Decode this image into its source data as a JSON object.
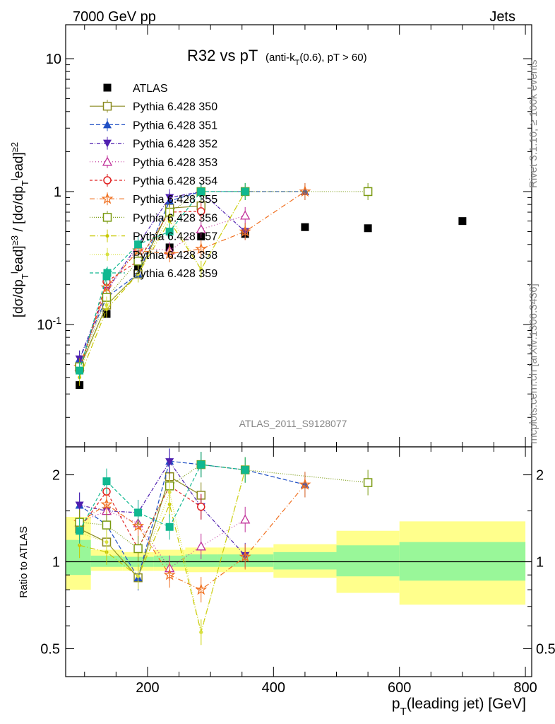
{
  "header": {
    "left": "7000 GeV pp",
    "right": "Jets"
  },
  "title": {
    "main": "R32 vs pT",
    "detail": "(anti-k_T(0.6), pT > 60)"
  },
  "side_labels": {
    "rivet": "Rivet 3.1.10, ≥ 100k events",
    "source": "mcplots.cern.ch [arXiv:1306.3436]"
  },
  "watermark": "ATLAS_2011_S9128077",
  "chart_data": [
    {
      "panel": "main",
      "type": "scatter",
      "ylabel": "[dσ/dp_T^lead]^{≥3} / [dσ/dp_T^lead]^{≥2}",
      "yscale": "log",
      "ylim": [
        0.012,
        18
      ],
      "xlim": [
        70,
        810
      ],
      "ytick_labels": [
        "10^{-1}",
        "1",
        "10"
      ],
      "legend_position": "top-left",
      "series": [
        {
          "name": "ATLAS",
          "color": "#000000",
          "marker": "square-filled",
          "x": [
            92,
            135,
            185,
            235,
            285,
            355,
            450,
            550,
            700
          ],
          "y": [
            0.035,
            0.12,
            0.27,
            0.38,
            0.46,
            0.48,
            0.54,
            0.53,
            0.6
          ]
        },
        {
          "name": "Pythia 6.428 350",
          "color": "#8a8a20",
          "dash": "solid",
          "marker": "square-open",
          "x": [
            92,
            135,
            185,
            235,
            285
          ],
          "y": [
            0.047,
            0.14,
            0.24,
            0.75,
            0.78
          ]
        },
        {
          "name": "Pythia 6.428 351",
          "color": "#1f4fc4",
          "dash": "6,3",
          "marker": "triangle-up-filled",
          "x": [
            92,
            135,
            185,
            235,
            285,
            355,
            450
          ],
          "y": [
            0.055,
            0.16,
            0.24,
            0.85,
            1.0,
            1.0,
            1.0
          ]
        },
        {
          "name": "Pythia 6.428 352",
          "color": "#5020b0",
          "dash": "5,2,1,2",
          "marker": "triangle-down-filled",
          "x": [
            92,
            135,
            185,
            235,
            285,
            355
          ],
          "y": [
            0.055,
            0.18,
            0.4,
            0.9,
            1.0,
            0.5
          ]
        },
        {
          "name": "Pythia 6.428 353",
          "color": "#c0309a",
          "dash": "1,3",
          "marker": "triangle-up-open",
          "x": [
            92,
            135,
            185,
            235,
            285,
            355
          ],
          "y": [
            0.048,
            0.18,
            0.38,
            0.36,
            0.52,
            0.66
          ]
        },
        {
          "name": "Pythia 6.428 354",
          "color": "#e02020",
          "dash": "4,3",
          "marker": "circle-open",
          "x": [
            92,
            135,
            185,
            235,
            285
          ],
          "y": [
            0.045,
            0.21,
            0.3,
            0.7,
            0.71
          ]
        },
        {
          "name": "Pythia 6.428 355",
          "color": "#f07020",
          "dash": "7,3,1,3",
          "marker": "star",
          "x": [
            92,
            135,
            185,
            235,
            285,
            355,
            450
          ],
          "y": [
            0.048,
            0.19,
            0.36,
            0.34,
            0.37,
            0.5,
            1.0
          ]
        },
        {
          "name": "Pythia 6.428 356",
          "color": "#7a9a10",
          "dash": "1,2",
          "marker": "square-open",
          "x": [
            92,
            135,
            185,
            235,
            285,
            355,
            550
          ],
          "y": [
            0.048,
            0.16,
            0.3,
            0.7,
            1.0,
            1.0,
            1.0
          ]
        },
        {
          "name": "Pythia 6.428 357",
          "color": "#c8c800",
          "dash": "8,3,1,3",
          "marker": "dot",
          "x": [
            92,
            135,
            185,
            235,
            285,
            355
          ],
          "y": [
            0.04,
            0.13,
            0.24,
            0.6,
            0.26,
            1.0
          ]
        },
        {
          "name": "Pythia 6.428 358",
          "color": "#d8e040",
          "dash": "1,2",
          "marker": "dot",
          "x": [
            92,
            135,
            185,
            235,
            285,
            355
          ],
          "y": [
            0.044,
            0.14,
            0.24,
            0.66,
            0.26,
            1.0
          ]
        },
        {
          "name": "Pythia 6.428 359",
          "color": "#10b890",
          "dash": "5,3",
          "marker": "square-filled",
          "x": [
            92,
            135,
            185,
            235,
            285,
            355
          ],
          "y": [
            0.045,
            0.23,
            0.4,
            0.5,
            1.0,
            1.0
          ]
        }
      ]
    },
    {
      "panel": "ratio",
      "type": "scatter",
      "ylabel": "Ratio to ATLAS",
      "yscale": "log",
      "ylim": [
        0.4,
        2.5
      ],
      "xlim": [
        70,
        810
      ],
      "xlabel": "p_T(leading jet) [GeV]",
      "xtick_labels": [
        "200",
        "400",
        "600",
        "800"
      ],
      "ytick_labels": [
        "0.5",
        "1",
        "2"
      ],
      "bands": [
        {
          "x_range": [
            70,
            110
          ],
          "yellow": [
            0.8,
            1.43
          ],
          "green": [
            0.9,
            1.19
          ]
        },
        {
          "x_range": [
            110,
            160
          ],
          "yellow": [
            0.93,
            1.1
          ],
          "green": [
            0.96,
            1.05
          ]
        },
        {
          "x_range": [
            160,
            210
          ],
          "yellow": [
            0.93,
            1.08
          ],
          "green": [
            0.96,
            1.04
          ]
        },
        {
          "x_range": [
            210,
            260
          ],
          "yellow": [
            0.93,
            1.1
          ],
          "green": [
            0.96,
            1.05
          ]
        },
        {
          "x_range": [
            260,
            310
          ],
          "yellow": [
            0.92,
            1.12
          ],
          "green": [
            0.96,
            1.06
          ]
        },
        {
          "x_range": [
            310,
            400
          ],
          "yellow": [
            0.92,
            1.12
          ],
          "green": [
            0.96,
            1.06
          ]
        },
        {
          "x_range": [
            400,
            500
          ],
          "yellow": [
            0.88,
            1.15
          ],
          "green": [
            0.94,
            1.08
          ]
        },
        {
          "x_range": [
            500,
            600
          ],
          "yellow": [
            0.78,
            1.28
          ],
          "green": [
            0.89,
            1.14
          ]
        },
        {
          "x_range": [
            600,
            800
          ],
          "yellow": [
            0.71,
            1.38
          ],
          "green": [
            0.86,
            1.17
          ]
        }
      ],
      "series": [
        {
          "name": "Pythia 6.428 350",
          "x": [
            92,
            135,
            185,
            235,
            285
          ],
          "y": [
            1.3,
            1.17,
            0.88,
            1.97,
            1.7
          ]
        },
        {
          "name": "Pythia 6.428 351",
          "x": [
            92,
            135,
            185,
            235,
            285,
            355,
            450
          ],
          "y": [
            1.57,
            1.34,
            0.88,
            2.23,
            2.17,
            2.08,
            1.85
          ]
        },
        {
          "name": "Pythia 6.428 352",
          "x": [
            92,
            135,
            185,
            235,
            285,
            355
          ],
          "y": [
            1.57,
            1.5,
            1.48,
            2.22,
            1.55,
            1.05
          ]
        },
        {
          "name": "Pythia 6.428 353",
          "x": [
            92,
            135,
            185,
            235,
            285,
            355
          ],
          "y": [
            1.37,
            1.5,
            1.36,
            0.95,
            1.13,
            1.4
          ]
        },
        {
          "name": "Pythia 6.428 354",
          "x": [
            92,
            135,
            185,
            235,
            285
          ],
          "y": [
            1.3,
            1.75,
            1.11,
            1.83,
            1.55
          ]
        },
        {
          "name": "Pythia 6.428 355",
          "x": [
            92,
            135,
            185,
            235,
            285,
            355,
            450
          ],
          "y": [
            1.37,
            1.58,
            1.33,
            0.9,
            0.8,
            1.04,
            1.85
          ]
        },
        {
          "name": "Pythia 6.428 356",
          "x": [
            92,
            135,
            185,
            235,
            285,
            355,
            550
          ],
          "y": [
            1.37,
            1.34,
            1.11,
            1.83,
            2.17,
            2.08,
            1.88
          ]
        },
        {
          "name": "Pythia 6.428 357",
          "x": [
            92,
            135,
            185,
            235,
            285,
            355
          ],
          "y": [
            1.14,
            1.08,
            0.89,
            1.58,
            0.57,
            2.08
          ]
        },
        {
          "name": "Pythia 6.428 358",
          "x": [
            92,
            135,
            185,
            235,
            285,
            355
          ],
          "y": [
            1.26,
            1.17,
            0.89,
            1.74,
            0.57,
            2.08
          ]
        },
        {
          "name": "Pythia 6.428 359",
          "x": [
            92,
            135,
            185,
            235,
            285,
            355
          ],
          "y": [
            1.28,
            1.9,
            1.48,
            1.32,
            2.17,
            2.08
          ]
        }
      ]
    }
  ]
}
